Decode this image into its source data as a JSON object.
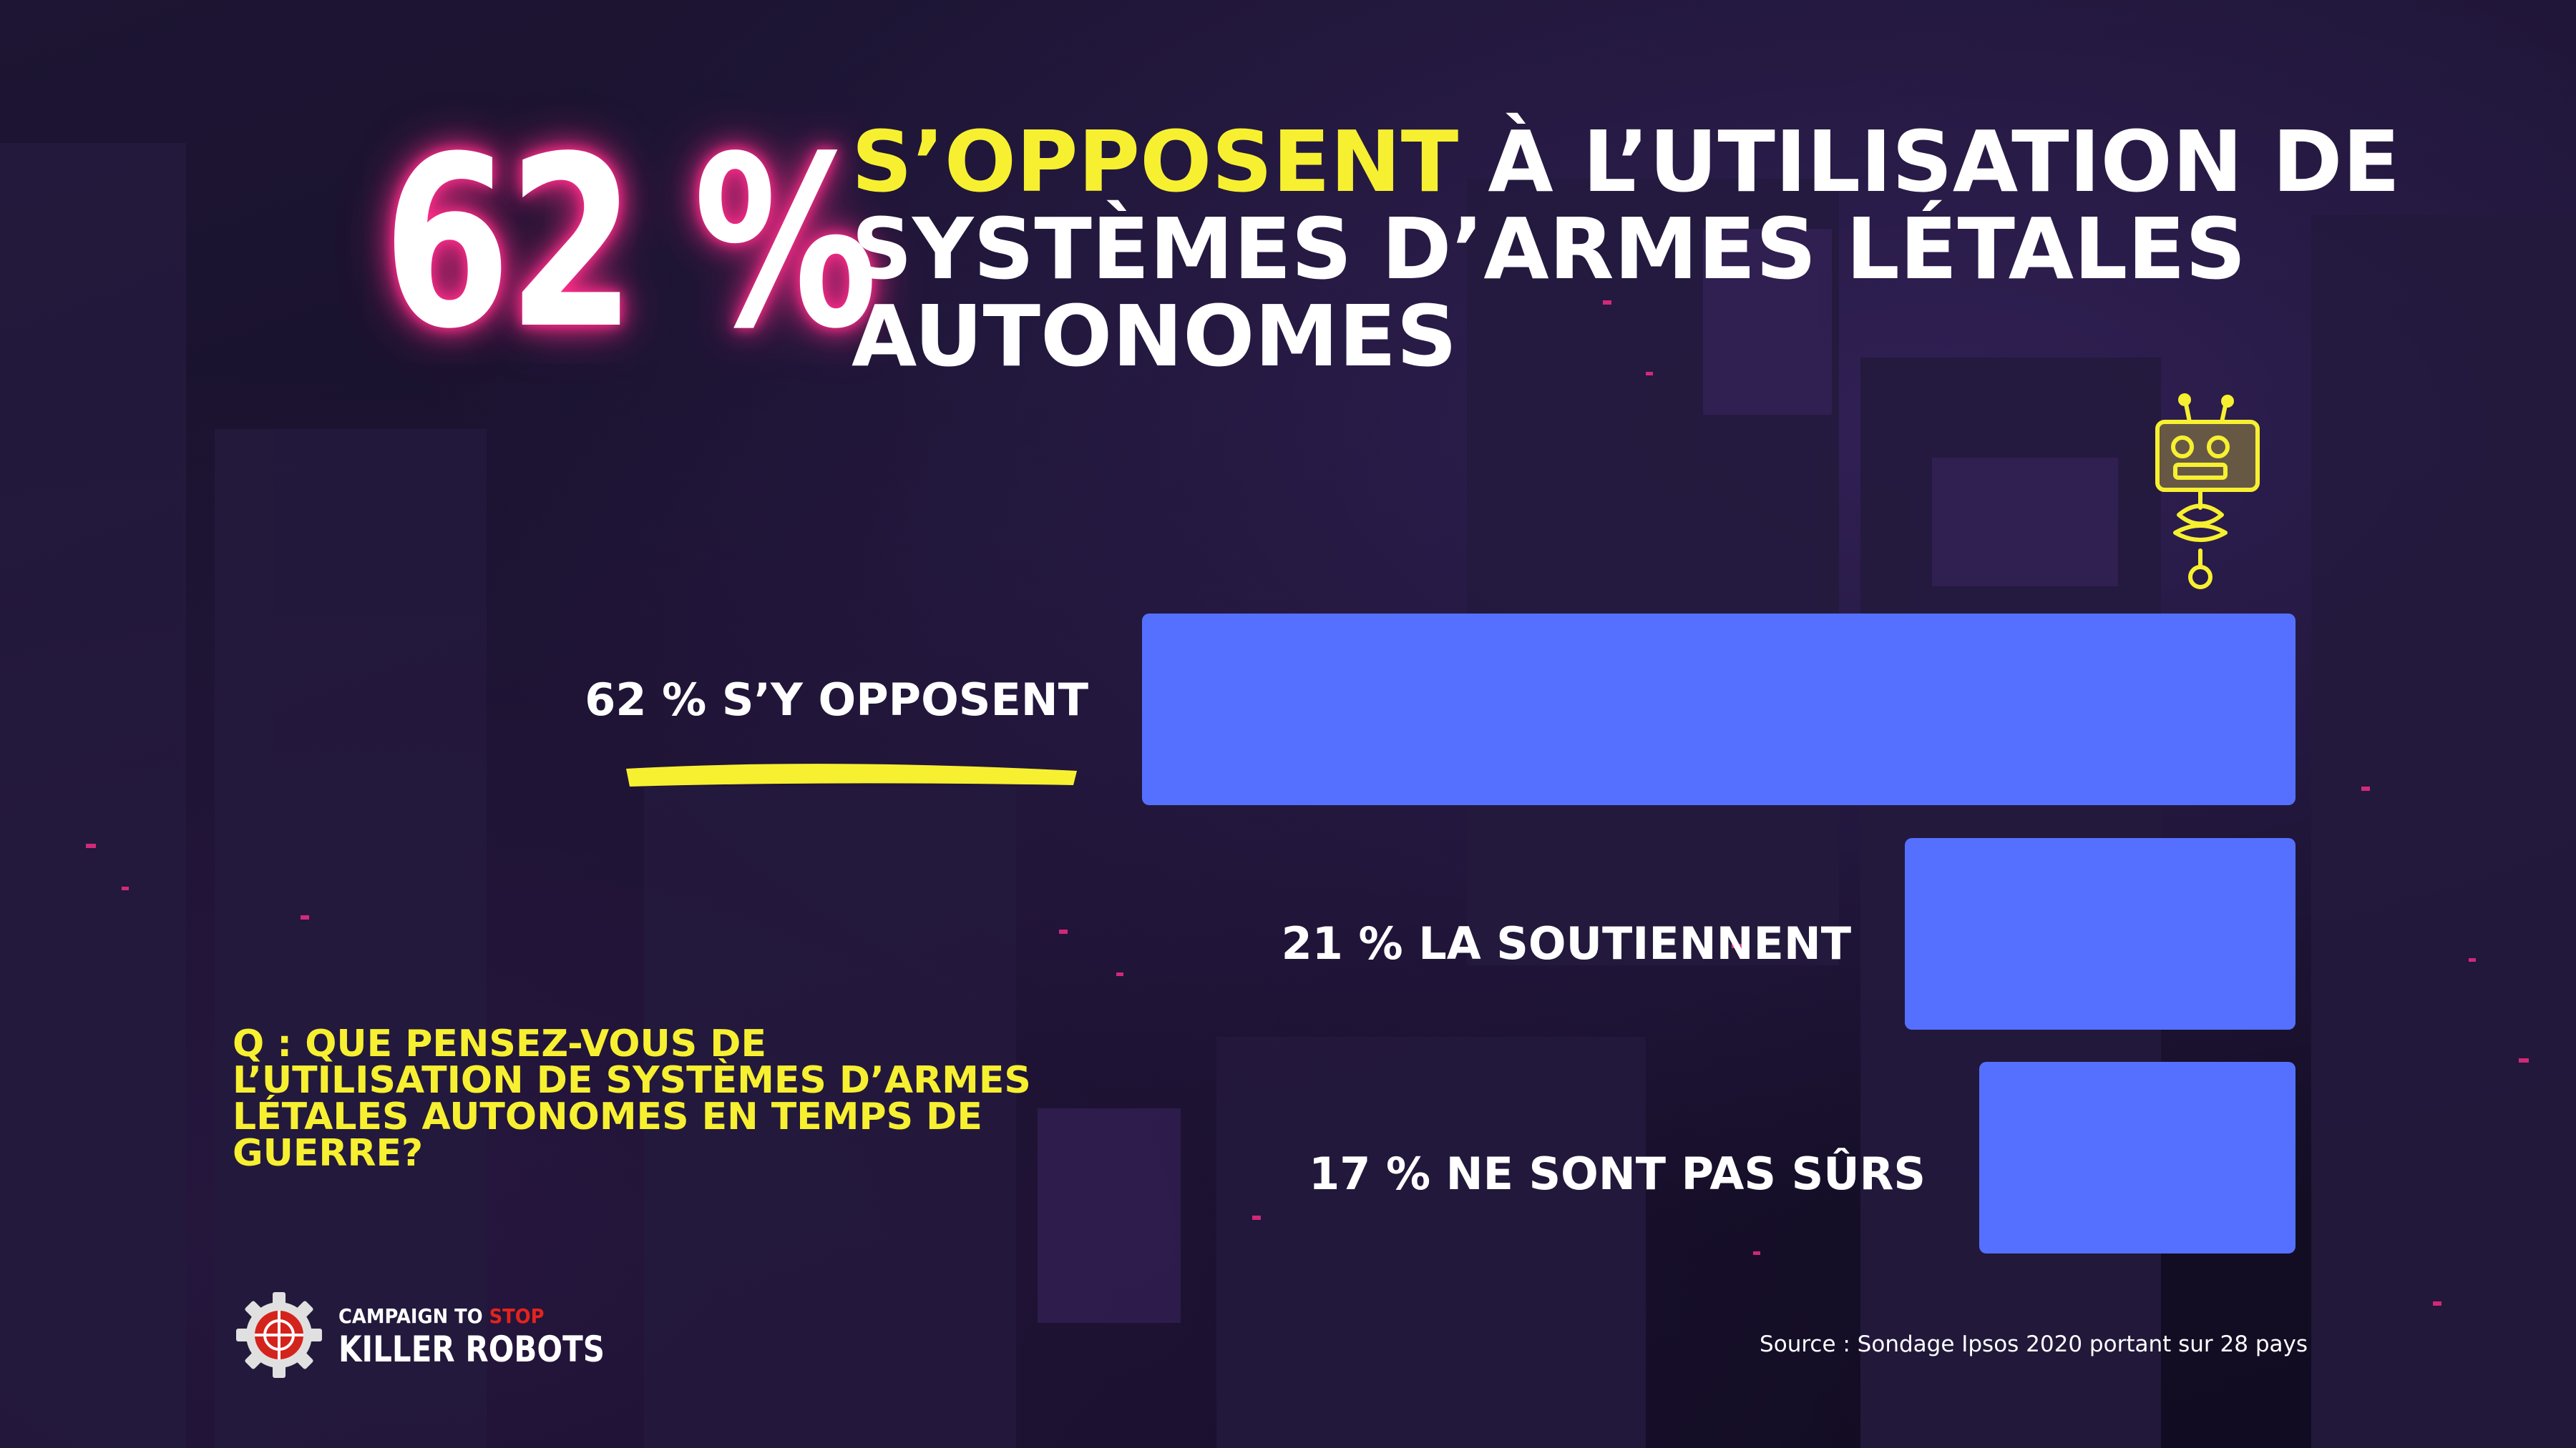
{
  "colors": {
    "bar": "#5570ff",
    "highlight": "#f7f031",
    "glow": "#ff2d8a",
    "text": "#ffffff",
    "background": "#1a1230",
    "logo_stop": "#e2241c"
  },
  "headline": {
    "big_percent": "62 %",
    "highlight": "S’OPPOSENT",
    "rest": " À L’UTILISATION DE SYSTÈMES D’ARMES LÉTALES AUTONOMES"
  },
  "chart_data": {
    "type": "bar",
    "orientation": "horizontal",
    "categories": [
      "S’Y OPPOSENT",
      "LA SOUTIENNENT",
      "NE SONT PAS SÛRS"
    ],
    "values": [
      62,
      21,
      17
    ],
    "unit": "%",
    "labels": [
      "62 % S’Y OPPOSENT",
      "21 % LA SOUTIENNENT",
      "17 % NE SONT PAS SÛRS"
    ],
    "xlim": [
      0,
      100
    ]
  },
  "question": "Q : QUE PENSEZ-VOUS DE L’UTILISATION DE SYSTÈMES D’ARMES LÉTALES AUTONOMES EN TEMPS DE GUERRE?",
  "logo": {
    "line1_prefix": "CAMPAIGN TO ",
    "line1_stop": "STOP",
    "line2": "KILLER ROBOTS",
    "icon": "gear-crosshair-icon"
  },
  "robot_icon": "robot-icon",
  "source": "Source : Sondage Ipsos 2020 portant sur 28 pays"
}
